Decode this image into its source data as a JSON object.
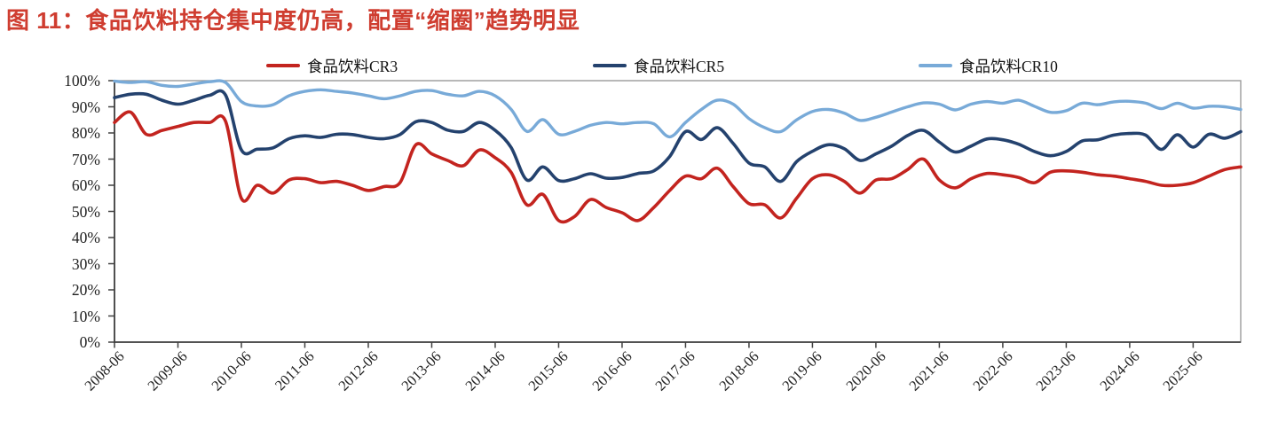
{
  "title": "图 11：食品饮料持仓集中度仍高，配置“缩圈”趋势明显",
  "legend": [
    {
      "label": "食品饮料CR3",
      "color": "#c3241f"
    },
    {
      "label": "食品饮料CR5",
      "color": "#24426e"
    },
    {
      "label": "食品饮料CR10",
      "color": "#78aad8"
    }
  ],
  "colors": {
    "title_red": "#cf3d30",
    "axis_dark": "#404040",
    "plot_border": "#9b9b9b",
    "label_text": "#1f1f1f"
  },
  "chart_data": {
    "type": "line",
    "title": "图 11：食品饮料持仓集中度仍高，配置“缩圈”趋势明显",
    "xlabel": "",
    "ylabel": "",
    "ylim": [
      0,
      100
    ],
    "grid": false,
    "legend_position": "top",
    "x_label_rotation": -45,
    "y_tick_labels": [
      "100%",
      "90%",
      "80%",
      "70%",
      "60%",
      "50%",
      "40%",
      "30%",
      "20%",
      "10%",
      "0%"
    ],
    "x_tick_labels": [
      "2008-06",
      "2009-06",
      "2010-06",
      "2011-06",
      "2012-06",
      "2013-06",
      "2014-06",
      "2015-06",
      "2016-06",
      "2017-06",
      "2018-06",
      "2019-06",
      "2020-06",
      "2021-06",
      "2022-06",
      "2023-06",
      "2024-06",
      "2025-06"
    ],
    "categories": [
      "2008-06",
      "2008-09",
      "2008-12",
      "2009-03",
      "2009-06",
      "2009-09",
      "2009-12",
      "2010-03",
      "2010-06",
      "2010-09",
      "2010-12",
      "2011-03",
      "2011-06",
      "2011-09",
      "2011-12",
      "2012-03",
      "2012-06",
      "2012-09",
      "2012-12",
      "2013-03",
      "2013-06",
      "2013-09",
      "2013-12",
      "2014-03",
      "2014-06",
      "2014-09",
      "2014-12",
      "2015-03",
      "2015-06",
      "2015-09",
      "2015-12",
      "2016-03",
      "2016-06",
      "2016-09",
      "2016-12",
      "2017-03",
      "2017-06",
      "2017-09",
      "2017-12",
      "2018-03",
      "2018-06",
      "2018-09",
      "2018-12",
      "2019-03",
      "2019-06",
      "2019-09",
      "2019-12",
      "2020-03",
      "2020-06",
      "2020-09",
      "2020-12",
      "2021-03",
      "2021-06",
      "2021-09",
      "2021-12",
      "2022-03",
      "2022-06",
      "2022-09",
      "2022-12",
      "2023-03",
      "2023-06",
      "2023-09",
      "2023-12",
      "2024-03",
      "2024-06",
      "2024-09",
      "2024-12",
      "2025-03",
      "2025-06",
      "2025-09",
      "2025-12",
      "2026-03"
    ],
    "series": [
      {
        "name": "食品饮料CR3",
        "color": "#c3241f",
        "width": 3.6,
        "values": [
          84,
          88,
          79.5,
          81,
          82.5,
          84,
          84,
          84.5,
          55,
          60,
          57,
          62,
          62.5,
          61,
          61.5,
          60,
          58,
          59.5,
          61,
          75.5,
          72,
          69.5,
          67.5,
          73.5,
          70.5,
          65,
          52.5,
          56.5,
          46.5,
          48,
          54.5,
          51.5,
          49.5,
          46.5,
          51.5,
          58,
          63.5,
          62.5,
          66.5,
          59.5,
          53,
          52.5,
          47.5,
          55,
          62.5,
          64,
          61.5,
          57,
          62,
          62.5,
          66,
          70,
          62,
          59,
          62.5,
          64.5,
          64,
          63,
          61,
          65,
          65.5,
          65,
          64,
          63.5,
          62.5,
          61.5,
          60,
          60,
          61,
          63.5,
          66,
          67
        ]
      },
      {
        "name": "食品饮料CR5",
        "color": "#24426e",
        "width": 3.6,
        "values": [
          93.5,
          94.8,
          94.8,
          92.5,
          91,
          92.5,
          94.4,
          94.5,
          73.5,
          73.8,
          74.3,
          77.8,
          78.9,
          78.3,
          79.5,
          79.4,
          78.3,
          77.8,
          79.4,
          84.3,
          84,
          81.1,
          80.6,
          84,
          81,
          74.5,
          62,
          67,
          61.8,
          62.5,
          64.4,
          62.7,
          63,
          64.5,
          65.5,
          71,
          80.5,
          77.5,
          82,
          76,
          68.5,
          67,
          61.5,
          69,
          73,
          75.5,
          74,
          69.5,
          72,
          75,
          79,
          81,
          76.5,
          72.7,
          75,
          77.7,
          77.4,
          75.7,
          72.9,
          71.3,
          72.9,
          76.9,
          77.4,
          79.2,
          79.8,
          79.2,
          73.7,
          79.3,
          74.6,
          79.5,
          78,
          80.5
        ]
      },
      {
        "name": "食品饮料CR10",
        "color": "#78aad8",
        "width": 3.4,
        "values": [
          99.8,
          99.3,
          99.6,
          98.2,
          97.8,
          98.7,
          99.6,
          99.3,
          92,
          90.3,
          90.8,
          94.2,
          95.9,
          96.5,
          95.9,
          95.3,
          94.2,
          93.1,
          94.2,
          95.9,
          96.2,
          94.8,
          94.2,
          95.9,
          94.2,
          89.1,
          80.6,
          85.1,
          79.5,
          80.6,
          82.9,
          84,
          83.5,
          84,
          83.5,
          78.5,
          84,
          89,
          92.5,
          91,
          85.5,
          82,
          80.5,
          85,
          88.2,
          89,
          87.6,
          84.8,
          86,
          88,
          90,
          91.5,
          91,
          88.8,
          91,
          92,
          91.4,
          92.5,
          90.2,
          87.9,
          88.5,
          91.4,
          90.8,
          91.9,
          92.1,
          91.4,
          89.3,
          91.4,
          89.5,
          90.2,
          90,
          89
        ]
      }
    ]
  }
}
